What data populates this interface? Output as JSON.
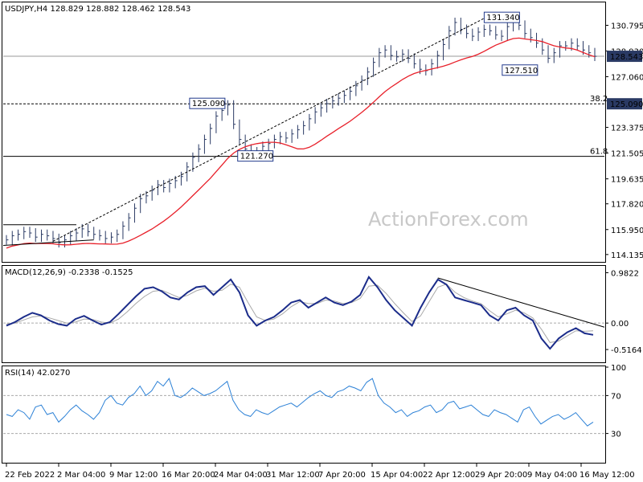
{
  "chart_data": {
    "type": "line",
    "price_panel": {
      "title": "USDJPY,H4  128.829 128.882 128.462 128.543",
      "y_ticks": [
        "130.795",
        "128.930",
        "127.060",
        "123.375",
        "121.505",
        "119.635",
        "117.820",
        "115.950",
        "114.135"
      ],
      "ylim": [
        113.6,
        132.4
      ],
      "last_price": 128.543,
      "last_price_label": "128.543",
      "level_label": "125.090",
      "annotations": [
        {
          "text": "131.340",
          "x": 0.8,
          "y": 131.34
        },
        {
          "text": "127.510",
          "x": 0.83,
          "y": 127.51
        },
        {
          "text": "125.090",
          "x": 0.31,
          "y": 125.09
        },
        {
          "text": "121.270",
          "x": 0.39,
          "y": 121.27
        }
      ],
      "fib_levels": [
        {
          "label": "38.2",
          "value": 125.09
        },
        {
          "label": "61.8",
          "value": 121.27
        }
      ],
      "close": [
        115.2,
        115.5,
        115.6,
        115.8,
        115.7,
        115.4,
        115.6,
        115.5,
        115.3,
        115.0,
        115.2,
        115.5,
        115.7,
        116.0,
        115.8,
        115.6,
        115.5,
        115.3,
        115.4,
        115.6,
        116.2,
        116.8,
        117.5,
        118.2,
        118.4,
        118.8,
        119.2,
        119.0,
        119.3,
        119.5,
        119.8,
        120.5,
        121.2,
        121.8,
        122.5,
        123.3,
        124.2,
        124.6,
        125.0,
        123.6,
        122.5,
        121.8,
        121.4,
        121.6,
        122.0,
        122.2,
        122.5,
        122.7,
        122.6,
        122.9,
        123.2,
        123.5,
        124.0,
        124.5,
        124.8,
        125.1,
        125.3,
        125.5,
        125.7,
        126.0,
        126.4,
        126.8,
        127.4,
        128.1,
        128.8,
        129.0,
        128.6,
        128.5,
        128.7,
        128.4,
        128.0,
        127.6,
        127.5,
        128.0,
        128.6,
        129.4,
        130.4,
        131.0,
        130.5,
        130.2,
        130.0,
        130.3,
        130.5,
        130.4,
        130.1,
        130.0,
        130.7,
        131.1,
        130.8,
        130.2,
        129.9,
        129.5,
        129.0,
        128.4,
        128.8,
        129.3,
        129.3,
        129.5,
        129.3,
        129.0,
        128.8,
        128.543
      ],
      "sma_color": "#e8202a",
      "price_color": "#2a3a64"
    },
    "macd_panel": {
      "title": "MACD(12,26,9) -0.2338 -0.1525",
      "y_ticks": [
        "0.9822",
        "0.00",
        "-0.5164"
      ],
      "ylim": [
        -0.75,
        1.1
      ],
      "values": [
        -0.05,
        0.02,
        0.12,
        0.2,
        0.15,
        0.05,
        -0.02,
        -0.05,
        0.08,
        0.14,
        0.05,
        -0.03,
        0.02,
        0.18,
        0.35,
        0.52,
        0.67,
        0.7,
        0.62,
        0.5,
        0.46,
        0.6,
        0.7,
        0.72,
        0.55,
        0.7,
        0.85,
        0.6,
        0.15,
        -0.05,
        0.05,
        0.12,
        0.25,
        0.4,
        0.45,
        0.3,
        0.4,
        0.5,
        0.4,
        0.35,
        0.42,
        0.55,
        0.9,
        0.7,
        0.45,
        0.25,
        0.1,
        -0.05,
        0.3,
        0.6,
        0.85,
        0.75,
        0.5,
        0.45,
        0.4,
        0.35,
        0.15,
        0.05,
        0.25,
        0.3,
        0.15,
        0.05,
        -0.3,
        -0.5,
        -0.3,
        -0.18,
        -0.1,
        -0.2,
        -0.23
      ],
      "signal": [
        -0.02,
        0.0,
        0.06,
        0.12,
        0.14,
        0.1,
        0.05,
        0.0,
        0.02,
        0.08,
        0.07,
        0.02,
        0.0,
        0.08,
        0.22,
        0.38,
        0.52,
        0.62,
        0.64,
        0.57,
        0.5,
        0.54,
        0.63,
        0.68,
        0.62,
        0.64,
        0.76,
        0.7,
        0.4,
        0.12,
        0.05,
        0.08,
        0.18,
        0.32,
        0.42,
        0.38,
        0.38,
        0.45,
        0.43,
        0.38,
        0.4,
        0.48,
        0.72,
        0.74,
        0.58,
        0.38,
        0.2,
        0.03,
        0.14,
        0.42,
        0.7,
        0.76,
        0.6,
        0.5,
        0.43,
        0.38,
        0.24,
        0.12,
        0.18,
        0.25,
        0.2,
        0.1,
        -0.12,
        -0.38,
        -0.35,
        -0.25,
        -0.15,
        -0.16,
        -0.15
      ]
    },
    "rsi_panel": {
      "title": "RSI(14) 42.0270",
      "y_ticks": [
        "100",
        "70",
        "30"
      ],
      "ylim": [
        0,
        100
      ],
      "levels": [
        70,
        30
      ],
      "values": [
        50,
        48,
        55,
        52,
        45,
        58,
        60,
        50,
        52,
        42,
        48,
        55,
        60,
        54,
        50,
        45,
        52,
        65,
        70,
        62,
        60,
        68,
        72,
        80,
        70,
        75,
        85,
        80,
        88,
        70,
        68,
        72,
        78,
        74,
        70,
        72,
        75,
        80,
        85,
        65,
        55,
        50,
        48,
        55,
        52,
        50,
        54,
        58,
        60,
        62,
        58,
        63,
        68,
        72,
        75,
        70,
        68,
        74,
        76,
        80,
        78,
        75,
        84,
        88,
        70,
        62,
        58,
        52,
        55,
        48,
        52,
        54,
        58,
        60,
        52,
        55,
        62,
        64,
        56,
        58,
        60,
        55,
        50,
        48,
        55,
        52,
        50,
        46,
        42,
        55,
        58,
        48,
        40,
        44,
        48,
        50,
        45,
        48,
        52,
        45,
        38,
        42
      ],
      "line_color": "#2b80d6"
    },
    "x_ticks": [
      "22 Feb 2022",
      "2 Mar 04:00",
      "9 Mar 12:00",
      "16 Mar 20:00",
      "24 Mar 04:00",
      "31 Mar 12:00",
      "7 Apr 20:00",
      "15 Apr 04:00",
      "22 Apr 12:00",
      "29 Apr 20:00",
      "9 May 04:00",
      "16 May 12:00"
    ]
  },
  "watermark": "ActionForex.com"
}
